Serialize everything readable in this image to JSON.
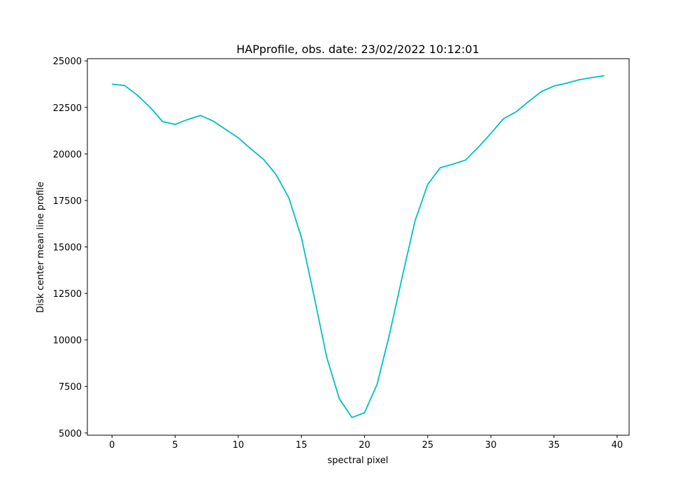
{
  "chart_data": {
    "type": "line",
    "title": "HAPprofile, obs. date: 23/02/2022 10:12:01",
    "x_label": "spectral pixel",
    "y_label": "Disk center mean line profile",
    "x": [
      0,
      1,
      2,
      3,
      4,
      5,
      6,
      7,
      8,
      9,
      10,
      11,
      12,
      13,
      14,
      15,
      16,
      17,
      18,
      19,
      20,
      21,
      22,
      23,
      24,
      25,
      26,
      27,
      28,
      29,
      30,
      31,
      32,
      33,
      34,
      35,
      36,
      37,
      38,
      39
    ],
    "series": [
      {
        "color": "#00bfbf",
        "values": [
          23750,
          23680,
          23160,
          22520,
          21740,
          21590,
          21850,
          22070,
          21770,
          21320,
          20870,
          20270,
          19710,
          18880,
          17650,
          15510,
          12360,
          9090,
          6840,
          5830,
          6090,
          7630,
          10370,
          13440,
          16410,
          18360,
          19260,
          19450,
          19670,
          20350,
          21100,
          21890,
          22260,
          22820,
          23350,
          23650,
          23800,
          23990,
          24100,
          24210
        ]
      }
    ],
    "xlim": [
      -1.95,
      40.95
    ],
    "ylim": [
      4880,
      25120
    ],
    "xticks": [
      0,
      5,
      10,
      15,
      20,
      25,
      30,
      35,
      40
    ],
    "yticks": [
      5000,
      7500,
      10000,
      12500,
      15000,
      17500,
      20000,
      22500,
      25000
    ]
  }
}
